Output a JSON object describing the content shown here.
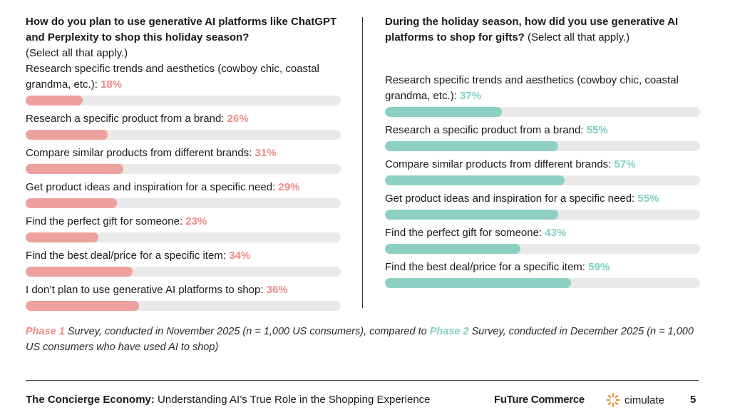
{
  "chart_data": [
    {
      "type": "bar",
      "title": "How do you plan to use generative AI platforms like ChatGPT and Perplexity to shop this holiday season?",
      "note": "(Select all that apply.)",
      "xlim": [
        0,
        100
      ],
      "unit": "%",
      "color": "#eda09d",
      "categories": [
        "Research specific trends and aesthetics (cowboy chic, coastal grandma, etc.):",
        "Research a specific product from a brand:",
        "Compare similar products from different brands:",
        "Get product ideas and inspiration for a specific need:",
        "Find the perfect gift for someone:",
        "Find the best deal/price for a specific item:",
        "I don’t plan to use generative AI platforms to shop:"
      ],
      "values": [
        18,
        26,
        31,
        29,
        23,
        34,
        36
      ],
      "labels": [
        "18%",
        "26%",
        "31%",
        "29%",
        "23%",
        "34%",
        "36%"
      ]
    },
    {
      "type": "bar",
      "title": "During the holiday season, how did you use generative AI platforms to shop for gifts?",
      "note": "(Select all that apply.)",
      "xlim": [
        0,
        100
      ],
      "unit": "%",
      "color": "#8fd0c5",
      "categories": [
        "Research specific trends and aesthetics (cowboy chic, coastal grandma, etc.):",
        "Research a specific product from a brand:",
        "Compare similar products from different brands:",
        "Get product ideas and inspiration for a specific need:",
        "Find the perfect gift for someone:",
        "Find the best deal/price for a specific item:"
      ],
      "values": [
        37,
        55,
        57,
        55,
        43,
        59
      ],
      "labels": [
        "37%",
        "55%",
        "57%",
        "55%",
        "43%",
        "59%"
      ]
    }
  ],
  "footnote": {
    "phase1": "Phase 1",
    "text1": " Survey, conducted in November 2025 (n = 1,000 US consumers), compared to ",
    "phase2": "Phase 2",
    "text2": " Survey, conducted in December 2025 (n = 1,000 US consumers who have used AI to shop)"
  },
  "footer": {
    "title_bold": "The Concierge Economy:",
    "title_rest": " Understanding AI’s True Role in the Shopping Experience",
    "brand1": "FuTure Commerce",
    "brand2": "cimulate",
    "page": "5"
  }
}
